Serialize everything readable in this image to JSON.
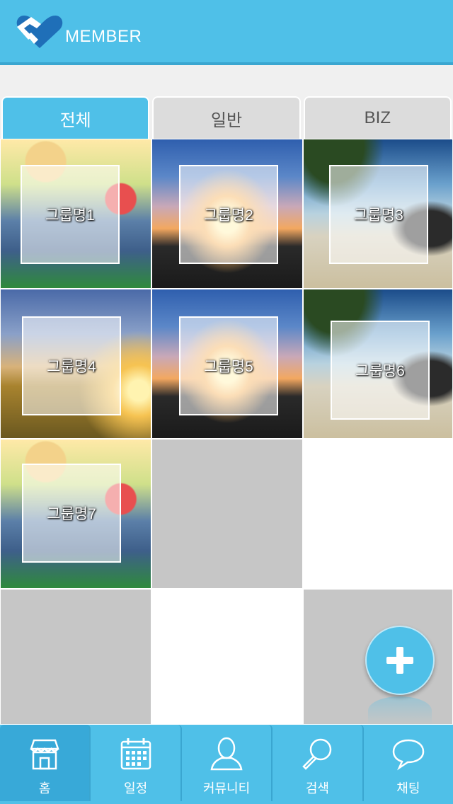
{
  "header": {
    "brand": "MEMBER",
    "logo_icon": "hands-heart-icon"
  },
  "tabs": [
    {
      "label": "전체",
      "active": true
    },
    {
      "label": "일반",
      "active": false
    },
    {
      "label": "BIZ",
      "active": false
    }
  ],
  "groups": [
    {
      "name": "그룹명1"
    },
    {
      "name": "그룹명2"
    },
    {
      "name": "그룹명3"
    },
    {
      "name": "그룹명4"
    },
    {
      "name": "그룹명5"
    },
    {
      "name": "그룹명6"
    },
    {
      "name": "그룹명7"
    }
  ],
  "fab": {
    "icon": "plus-icon"
  },
  "bottom_nav": [
    {
      "label": "홈",
      "icon": "store-icon",
      "active": true
    },
    {
      "label": "일정",
      "icon": "calendar-icon",
      "active": false
    },
    {
      "label": "커뮤니티",
      "icon": "person-icon",
      "active": false
    },
    {
      "label": "검색",
      "icon": "search-icon",
      "active": false
    },
    {
      "label": "채팅",
      "icon": "chat-bubble-icon",
      "active": false
    }
  ],
  "colors": {
    "accent": "#4fc0e8",
    "accent_dark": "#38a9d8",
    "empty_gray": "#c6c6c6"
  }
}
